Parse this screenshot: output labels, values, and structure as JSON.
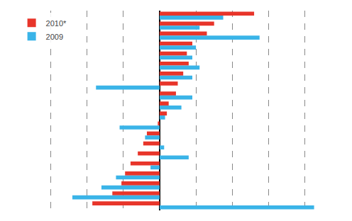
{
  "chart_data": {
    "type": "bar",
    "orientation": "horizontal",
    "categories": [
      null,
      null,
      null,
      null,
      null,
      null,
      null,
      null,
      null,
      null,
      null,
      null,
      null,
      null,
      null,
      null,
      null,
      null,
      null,
      null
    ],
    "series": [
      {
        "name": "2010*",
        "color": "#e8352a",
        "values": [
          5.2,
          3.0,
          2.6,
          1.8,
          1.5,
          1.6,
          1.3,
          1.0,
          0.9,
          0.5,
          0.4,
          -0.1,
          -0.7,
          -0.9,
          -1.2,
          -1.6,
          -1.9,
          -2.1,
          -2.6,
          -3.7
        ]
      },
      {
        "name": "2009",
        "color": "#3ab4e8",
        "values": [
          3.5,
          2.2,
          5.5,
          2.0,
          1.8,
          2.2,
          1.8,
          -3.5,
          1.8,
          1.2,
          0.3,
          -2.2,
          -0.8,
          0.25,
          1.6,
          -0.5,
          -2.4,
          -3.2,
          -4.8,
          8.5
        ]
      }
    ],
    "xlim": [
      -8,
      10
    ],
    "xticks": [
      -8,
      -6,
      -4,
      -2,
      0,
      2,
      4,
      6,
      8,
      10
    ],
    "grid": true,
    "legend": "upper left",
    "tick_labels": false
  }
}
